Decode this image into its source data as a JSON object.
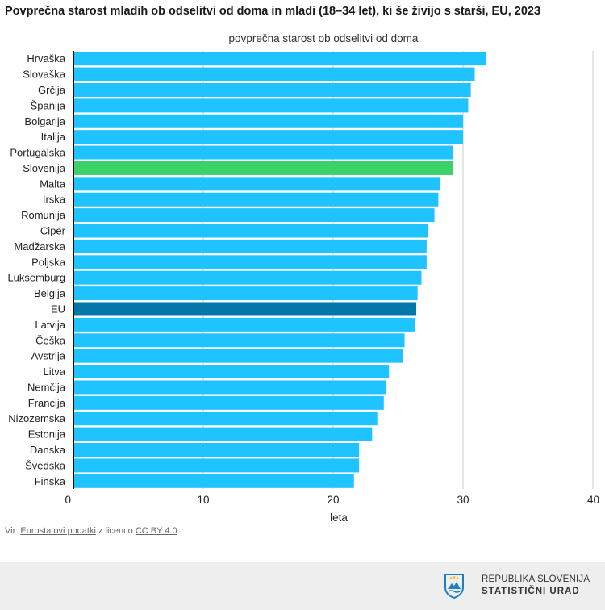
{
  "title": "Povprečna starost mladih ob odselitvi od doma in mladi (18–34 let), ki še živijo s starši, EU, 2023",
  "source": {
    "prefix": "Vir: ",
    "link1": "Eurostatovi podatki",
    "middle": " z licenco ",
    "link2": "CC BY 4.0"
  },
  "footer": {
    "logo_line1": "REPUBLIKA SLOVENIJA",
    "logo_line2": "STATISTIČNI URAD",
    "logo_icon": "sors-shield-icon"
  },
  "colors": {
    "bar_default": "#1ec3ff",
    "bar_slovenia": "#3dd16c",
    "bar_eu": "#0077a8",
    "grid": "#cccccc",
    "axis": "#000000"
  },
  "chart_data": {
    "type": "bar",
    "orientation": "horizontal",
    "series_title": "povprečna starost ob odselitvi od doma",
    "xlabel": "leta",
    "xlim": [
      0,
      40
    ],
    "xticks": [
      0,
      10,
      20,
      30,
      40
    ],
    "grid": true,
    "categories": [
      "Hrvaška",
      "Slovaška",
      "Grčija",
      "Španija",
      "Bolgarija",
      "Italija",
      "Portugalska",
      "Slovenija",
      "Malta",
      "Irska",
      "Romunija",
      "Ciper",
      "Madžarska",
      "Poljska",
      "Luksemburg",
      "Belgija",
      "EU",
      "Latvija",
      "Češka",
      "Avstrija",
      "Litva",
      "Nemčija",
      "Francija",
      "Nizozemska",
      "Estonija",
      "Danska",
      "Švedska",
      "Finska"
    ],
    "values": [
      31.8,
      30.9,
      30.6,
      30.4,
      30.0,
      30.0,
      29.2,
      29.2,
      28.2,
      28.1,
      27.8,
      27.3,
      27.2,
      27.2,
      26.8,
      26.5,
      26.4,
      26.3,
      25.5,
      25.4,
      24.3,
      24.1,
      23.9,
      23.4,
      23.0,
      22.0,
      22.0,
      21.6
    ],
    "highlight": {
      "Slovenija": "bar_slovenia",
      "EU": "bar_eu"
    }
  }
}
